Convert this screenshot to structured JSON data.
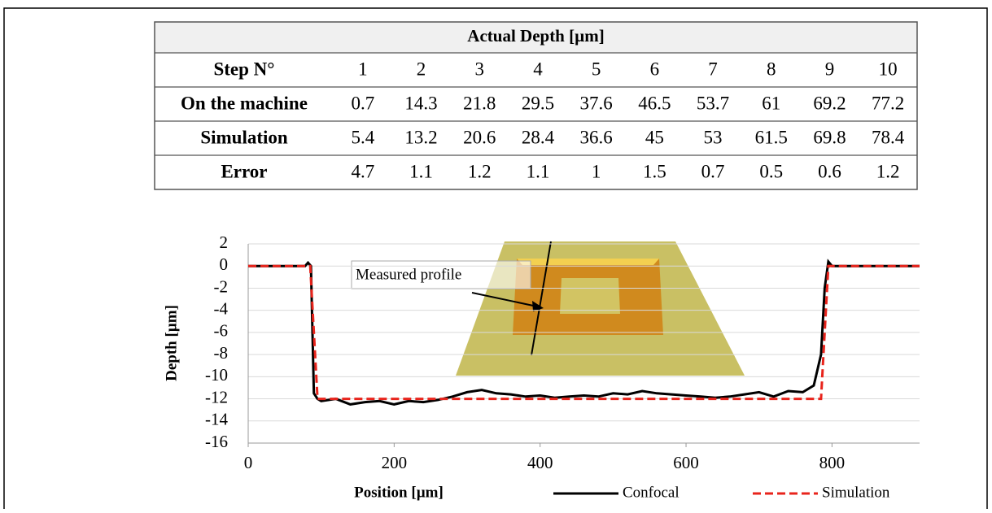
{
  "table": {
    "title": "Actual Depth [µm]",
    "header": [
      "Step N°",
      1,
      2,
      3,
      4,
      5,
      6,
      7,
      8,
      9,
      10
    ],
    "rows": [
      [
        "On the machine",
        0.7,
        14.3,
        21.8,
        29.5,
        37.6,
        46.5,
        53.7,
        61,
        69.2,
        77.2
      ],
      [
        "Simulation",
        5.4,
        13.2,
        20.6,
        28.4,
        36.6,
        45,
        53,
        61.5,
        69.8,
        78.4
      ],
      [
        "Error",
        4.7,
        1.1,
        1.2,
        1.1,
        1,
        1.5,
        0.7,
        0.5,
        0.6,
        1.2
      ]
    ]
  },
  "chart_data": {
    "type": "line",
    "x_label": "Position [µm]",
    "y_label": "Depth [µm]",
    "annotation": "Measured profile",
    "xlim": [
      0,
      920
    ],
    "xticks": [
      0,
      200,
      400,
      600,
      800
    ],
    "ylim": [
      -16,
      2
    ],
    "yticks": [
      -16,
      -14,
      -12,
      -10,
      -8,
      -6,
      -4,
      -2,
      0,
      2
    ],
    "grid": true,
    "series": [
      {
        "name": "Confocal",
        "color": "#000000",
        "linestyle": "solid",
        "x": [
          0,
          78,
          82,
          86,
          90,
          95,
          100,
          120,
          140,
          160,
          180,
          200,
          220,
          240,
          260,
          280,
          300,
          320,
          340,
          360,
          380,
          400,
          420,
          440,
          460,
          480,
          500,
          520,
          540,
          560,
          580,
          600,
          620,
          640,
          660,
          680,
          700,
          720,
          740,
          760,
          775,
          785,
          790,
          795,
          800,
          820,
          920
        ],
        "values": [
          0,
          0,
          0.3,
          0,
          -11.5,
          -12,
          -12.2,
          -12,
          -12.5,
          -12.3,
          -12.2,
          -12.5,
          -12.2,
          -12.3,
          -12.1,
          -11.8,
          -11.4,
          -11.2,
          -11.5,
          -11.6,
          -11.8,
          -11.7,
          -11.9,
          -11.8,
          -11.7,
          -11.8,
          -11.5,
          -11.6,
          -11.3,
          -11.5,
          -11.6,
          -11.7,
          -11.8,
          -11.9,
          -11.8,
          -11.6,
          -11.4,
          -11.8,
          -11.3,
          -11.4,
          -10.8,
          -8,
          -2,
          0.4,
          0,
          0,
          0
        ]
      },
      {
        "name": "Simulation",
        "color": "#e8241c",
        "linestyle": "dashed",
        "x": [
          0,
          85,
          95,
          785,
          795,
          920
        ],
        "values": [
          0,
          0,
          -12,
          -12,
          0,
          0
        ]
      }
    ]
  }
}
